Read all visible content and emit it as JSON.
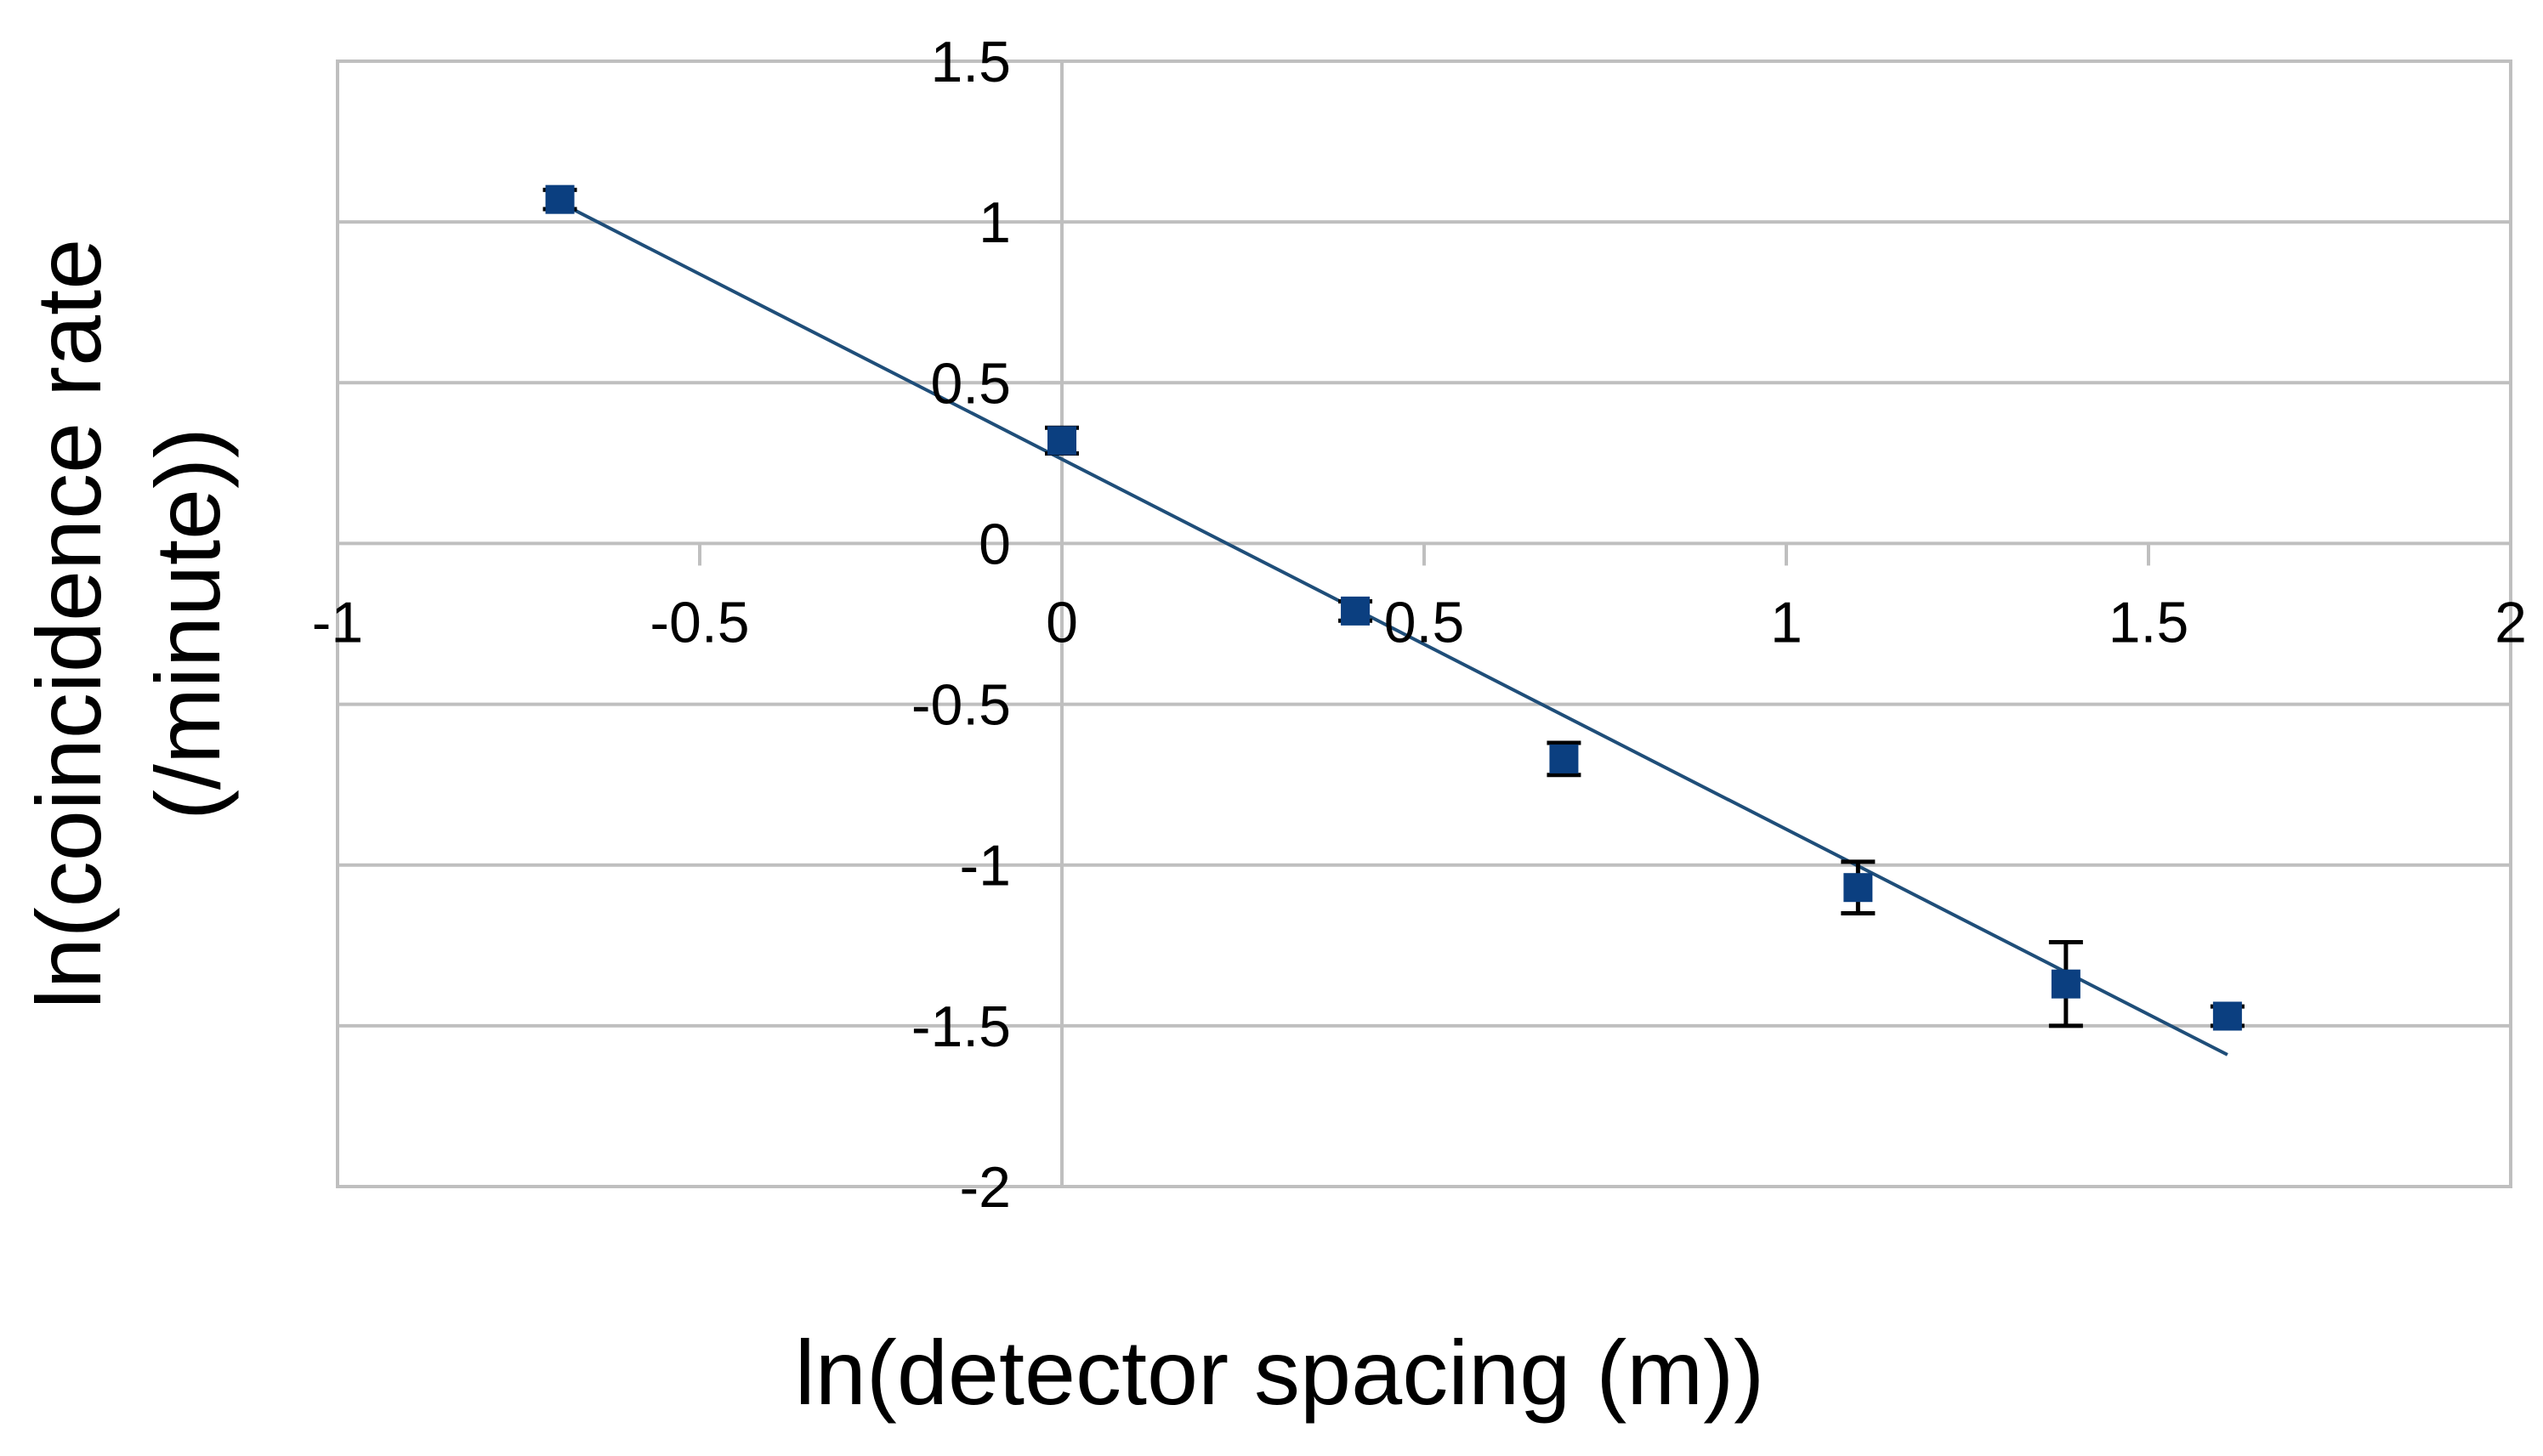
{
  "chart_data": {
    "type": "scatter",
    "title": "",
    "xlabel": "ln(detector spacing (m))",
    "ylabel_lines": [
      "ln(coincidence rate",
      "(/minute))"
    ],
    "xlim": [
      -1,
      2
    ],
    "ylim": [
      -2,
      1.5
    ],
    "x_ticks": [
      -1,
      -0.5,
      0,
      0.5,
      1,
      1.5,
      2
    ],
    "x_tick_labels": [
      "-1",
      "-0.5",
      "0",
      "0.5",
      "1",
      "1.5",
      "2"
    ],
    "y_ticks": [
      -2,
      -1.5,
      -1,
      -0.5,
      0,
      0.5,
      1,
      1.5
    ],
    "y_tick_labels": [
      "-2",
      "-1.5",
      "-1",
      "-0.5",
      "0",
      "0.5",
      "1",
      "1.5"
    ],
    "grid": true,
    "legend": "none",
    "series": [
      {
        "x": [
          -0.693,
          0.0,
          0.405,
          0.693,
          1.099,
          1.386,
          1.609
        ],
        "y": [
          1.07,
          0.32,
          -0.21,
          -0.67,
          -1.07,
          -1.37,
          -1.47
        ],
        "yerr": [
          0.03,
          0.04,
          0.03,
          0.05,
          0.08,
          0.13,
          0.03
        ],
        "color": "#0b3f80",
        "marker": "square"
      }
    ],
    "trendline": {
      "x": [
        -0.693,
        1.609
      ],
      "y": [
        1.06,
        -1.59
      ],
      "color": "#1f4e79"
    }
  }
}
